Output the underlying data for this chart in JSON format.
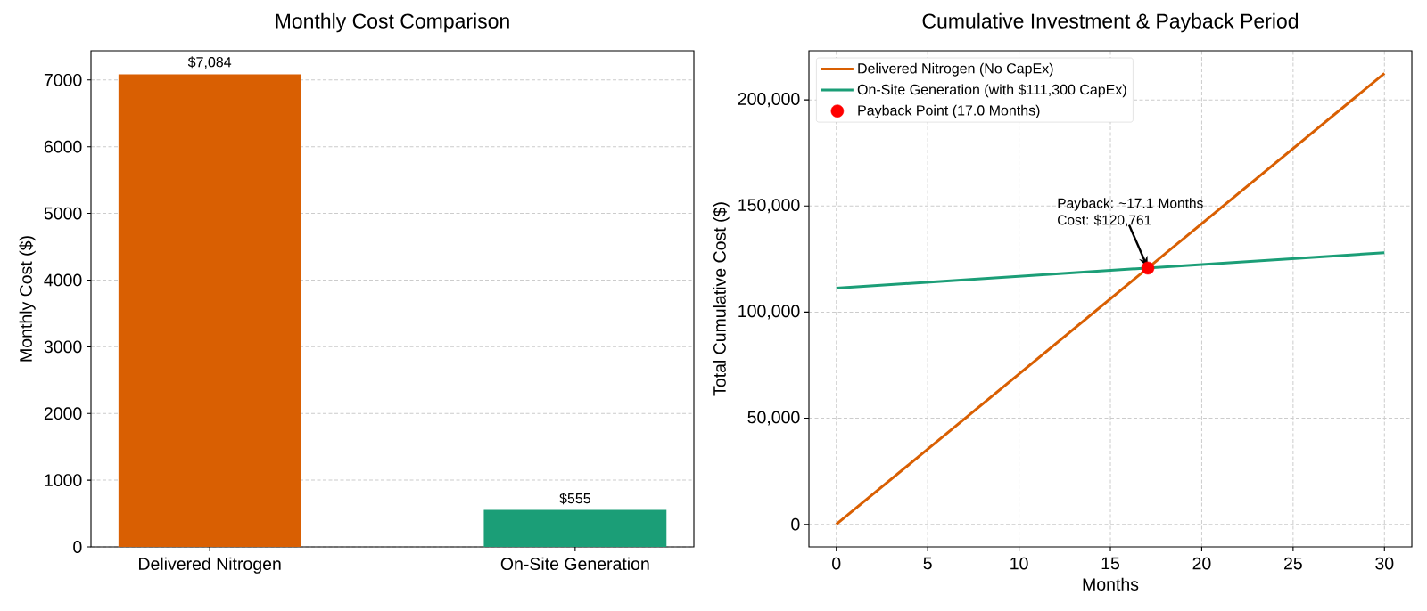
{
  "chart_data": [
    {
      "type": "bar",
      "title": "Monthly Cost Comparison",
      "ylabel": "Monthly Cost ($)",
      "categories": [
        "Delivered Nitrogen",
        "On-Site Generation"
      ],
      "values": [
        7084,
        555
      ],
      "colors": [
        "#d95f02",
        "#1b9e77"
      ],
      "value_labels": [
        "$7,084",
        "$555"
      ],
      "ylim": [
        0,
        7438
      ],
      "yticks": [
        0,
        1000,
        2000,
        3000,
        4000,
        5000,
        6000,
        7000
      ],
      "grid": "y"
    },
    {
      "type": "line",
      "title": "Cumulative Investment & Payback Period",
      "xlabel": "Months",
      "ylabel": "Total Cumulative Cost ($)",
      "x": [
        0,
        30
      ],
      "series": [
        {
          "name": "Delivered Nitrogen (No CapEx)",
          "color": "#d95f02",
          "values": [
            0,
            212500
          ]
        },
        {
          "name": "On-Site Generation (with $111,300 CapEx)",
          "color": "#1b9e77",
          "values": [
            111300,
            128000
          ]
        },
        {
          "name": "Payback Point (17.0 Months)",
          "type": "scatter",
          "color": "#ff0000",
          "x": [
            17.05
          ],
          "values": [
            120761
          ],
          "marker": "circle"
        }
      ],
      "xlim": [
        -1.5,
        31.5
      ],
      "ylim": [
        -10626,
        223146
      ],
      "xticks": [
        0,
        5,
        10,
        15,
        20,
        25,
        30
      ],
      "yticks": [
        0,
        {
          "value": 50000,
          "label": "50,000"
        },
        {
          "value": 100000,
          "label": "100,000"
        },
        {
          "value": 150000,
          "label": "150,000"
        },
        {
          "value": 200000,
          "label": "200,000"
        }
      ],
      "grid": true,
      "legend": "top left",
      "annotations": [
        {
          "text": "Payback: ~17.1 Months\nCost: $120,761",
          "x": 17.05,
          "y": 120761
        }
      ]
    }
  ]
}
